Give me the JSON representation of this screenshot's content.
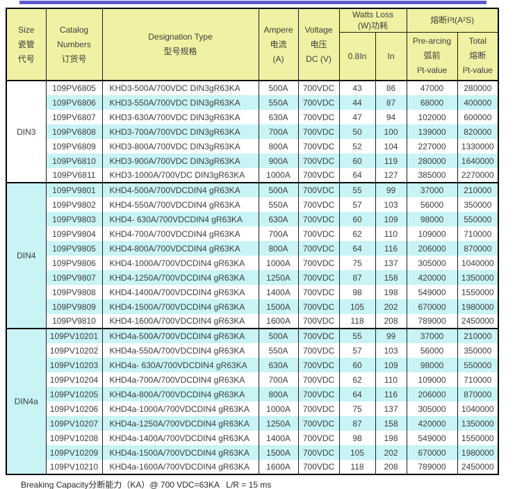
{
  "page": {
    "kind": "fuse-specification-table",
    "colors": {
      "header_bg": "#f1f1a3",
      "stripe_bg": "#c8f4f6",
      "top_bar": "#5a5ad0",
      "border": "#000000",
      "text": "#3c3c3c"
    }
  },
  "header": {
    "size": "Size\n瓷管\n代号",
    "catalog": "Catalog\nNumbers\n订货号",
    "designation": "Designation Type\n型号规格",
    "ampere": "Ampere\n电流\n(A)",
    "voltage": "Voltage\n电压\nDC (V)",
    "watts_loss_group": "Watts Loss\n(W)功耗",
    "i2t_group": "熔断I²t(A²S)",
    "watts_08in": "0.8In",
    "watts_in": "In",
    "prearcing": "Pre-arcing\n弧前\nI²t-value",
    "total": "Total\n熔断\nI²t-value"
  },
  "table": {
    "groups": [
      {
        "size": "DIN3",
        "rows": [
          [
            "109PV6805",
            "KHD3-500A/700VDC DIN3gR63KA",
            "500A",
            "700VDC",
            "43",
            "86",
            "47000",
            "280000"
          ],
          [
            "109PV6806",
            "KHD3-550A/700VDC DIN3gR63KA",
            "550A",
            "700VDC",
            "44",
            "87",
            "68000",
            "400000"
          ],
          [
            "109PV6807",
            "KHD3-630A/700VDC DIN3gR63KA",
            "630A",
            "700VDC",
            "47",
            "94",
            "102000",
            "600000"
          ],
          [
            "109PV6808",
            "KHD3-700A/700VDC DIN3gR63KA",
            "700A",
            "700VDC",
            "50",
            "100",
            "139000",
            "820000"
          ],
          [
            "109PV6809",
            "KHD3-800A/700VDC DIN3gR63KA",
            "800A",
            "700VDC",
            "52",
            "104",
            "227000",
            "1330000"
          ],
          [
            "109PV6810",
            "KHD3-900A/700VDC DIN3gR63KA",
            "900A",
            "700VDC",
            "60",
            "119",
            "280000",
            "1640000"
          ],
          [
            "109PV6811",
            "KHD3-1000A/700VDC DIN3gR63KA",
            "1000A",
            "700VDC",
            "64",
            "127",
            "385000",
            "2270000"
          ]
        ]
      },
      {
        "size": "DIN4",
        "rows": [
          [
            "109PV9801",
            "KHD4-500A/700VDCDIN4 gR63KA",
            "500A",
            "700VDC",
            "55",
            "99",
            "37000",
            "210000"
          ],
          [
            "109PV9802",
            "KHD4-550A/700VDCDIN4 gR63KA",
            "550A",
            "700VDC",
            "57",
            "103",
            "56000",
            "350000"
          ],
          [
            "109PV9803",
            "KHD4- 630A/700VDCDIN4 gR63KA",
            "630A",
            "700VDC",
            "60",
            "109",
            "98000",
            "550000"
          ],
          [
            "109PV9804",
            "KHD4-700A/700VDCDIN4 gR63KA",
            "700A",
            "700VDC",
            "62",
            "110",
            "109000",
            "710000"
          ],
          [
            "109PV9805",
            "KHD4-800A/700VDCDIN4 gR63KA",
            "800A",
            "700VDC",
            "64",
            "116",
            "206000",
            "870000"
          ],
          [
            "109PV9806",
            "KHD4-1000A/700VDCDIN4 gR63KA",
            "1000A",
            "700VDC",
            "75",
            "137",
            "305000",
            "1040000"
          ],
          [
            "109PV9807",
            "KHD4-1250A/700VDCDIN4 gR63KA",
            "1250A",
            "700VDC",
            "87",
            "158",
            "420000",
            "1350000"
          ],
          [
            "109PV9808",
            "KHD4-1400A/700VDCDIN4 gR63KA",
            "1400A",
            "700VDC",
            "98",
            "198",
            "549000",
            "1550000"
          ],
          [
            "109PV9809",
            "KHD4-1500A/700VDCDIN4 gR63KA",
            "1500A",
            "700VDC",
            "105",
            "202",
            "670000",
            "1980000"
          ],
          [
            "109PV9810",
            "KHD4-1600A/700VDCDIN4 gR63KA",
            "1600A",
            "700VDC",
            "118",
            "208",
            "789000",
            "2450000"
          ]
        ]
      },
      {
        "size": "DIN4a",
        "rows": [
          [
            "109PV10201",
            "KHD4a-500A/700VDCDIN4 gR63KA",
            "500A",
            "700VDC",
            "55",
            "99",
            "37000",
            "210000"
          ],
          [
            "109PV10202",
            "KHD4a-550A/700VDCDIN4 gR63KA",
            "550A",
            "700VDC",
            "57",
            "103",
            "56000",
            "350000"
          ],
          [
            "109PV10203",
            "KHD4a- 630A/700VDCDIN4 gR63KA",
            "630A",
            "700VDC",
            "60",
            "109",
            "98000",
            "550000"
          ],
          [
            "109PV10204",
            "KHD4a-700A/700VDCDIN4 gR63KA",
            "700A",
            "700VDC",
            "62",
            "110",
            "109000",
            "710000"
          ],
          [
            "109PV10205",
            "KHD4a-800A/700VDCDIN4 gR63KA",
            "800A",
            "700VDC",
            "64",
            "116",
            "206000",
            "870000"
          ],
          [
            "109PV10206",
            "KHD4a-1000A/700VDCDIN4 gR63KA",
            "1000A",
            "700VDC",
            "75",
            "137",
            "305000",
            "1040000"
          ],
          [
            "109PV10207",
            "KHD4a-1250A/700VDCDIN4 gR63KA",
            "1250A",
            "700VDC",
            "87",
            "158",
            "420000",
            "1350000"
          ],
          [
            "109PV10208",
            "KHD4a-1400A/700VDCDIN4 gR63KA",
            "1400A",
            "700VDC",
            "98",
            "198",
            "549000",
            "1550000"
          ],
          [
            "109PV10209",
            "KHD4a-1500A/700VDCDIN4 gR63KA",
            "1500A",
            "700VDC",
            "105",
            "202",
            "670000",
            "1980000"
          ],
          [
            "109PV10210",
            "KHD4a-1600A/700VDCDIN4 gR63KA",
            "1600A",
            "700VDC",
            "118",
            "208",
            "789000",
            "2450000"
          ]
        ]
      }
    ]
  },
  "footer": {
    "note": "Breaking Capacity分断能力（KA）@ 700 VDC=63KA   L/R = 15 ms"
  }
}
